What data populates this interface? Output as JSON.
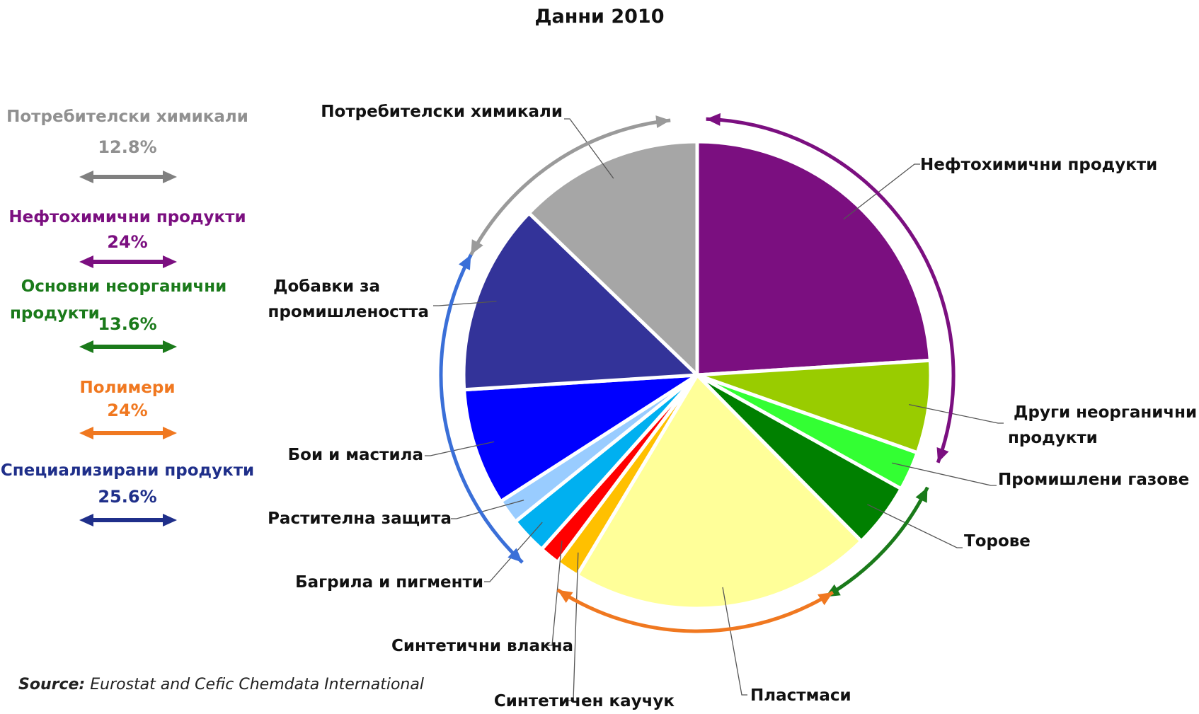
{
  "chart_data": {
    "type": "pie",
    "title": "Данни 2010",
    "slices": [
      {
        "label": "Нефтохимични продукти",
        "value": 24.0,
        "color": "#7b0f80"
      },
      {
        "label": "Други неорганични продукти",
        "value": 6.4,
        "color": "#99cc00"
      },
      {
        "label": "Промишлени газове",
        "value": 2.7,
        "color": "#33ff33"
      },
      {
        "label": "Торове",
        "value": 4.5,
        "color": "#008000"
      },
      {
        "label": "Пластмаси",
        "value": 21.0,
        "color": "#ffff99"
      },
      {
        "label": "Синтетичен каучук",
        "value": 1.6,
        "color": "#ffc000"
      },
      {
        "label": "Синтетични влакна",
        "value": 1.4,
        "color": "#ff0000"
      },
      {
        "label": "Багрила и пигменти",
        "value": 2.6,
        "color": "#00b0f0"
      },
      {
        "label": "Растителна защита",
        "value": 1.7,
        "color": "#99ccff"
      },
      {
        "label": "Бои и мастила",
        "value": 8.1,
        "color": "#0000ff"
      },
      {
        "label": "Добавки за промишлеността",
        "value": 13.2,
        "color": "#333399"
      },
      {
        "label": "Потребителски химикали",
        "value": 12.8,
        "color": "#a6a6a6"
      }
    ],
    "groups": [
      {
        "name": "Потребителски химикали",
        "percent": "12.8%",
        "color": "#808080"
      },
      {
        "name": "Нефтохимични продукти",
        "percent": "24%",
        "color": "#7b0f80"
      },
      {
        "name": "Основни неорганични продукти",
        "percent": "13.6%",
        "color": "#1a7a1a"
      },
      {
        "name": "Полимери",
        "percent": "24%",
        "color": "#f07820"
      },
      {
        "name": "Специализирани продукти",
        "percent": "25.6%",
        "color": "#1f1f70"
      }
    ]
  },
  "source_label": "Source:",
  "source_text": "Eurostat and Cefic Chemdata International"
}
